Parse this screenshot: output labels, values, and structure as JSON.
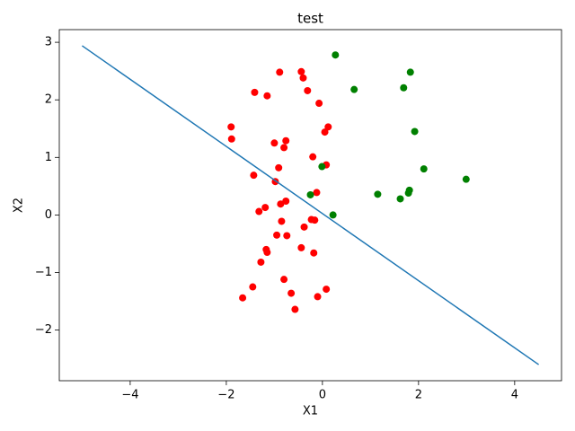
{
  "chart_data": {
    "type": "scatter",
    "title": "test",
    "x_label": "X1",
    "y_label": "X2",
    "xlim": [
      -5.475,
      4.975
    ],
    "ylim": [
      -2.88,
      3.22
    ],
    "xticks": [
      {
        "value": -4,
        "label": "−4"
      },
      {
        "value": -2,
        "label": "−2"
      },
      0,
      2,
      4
    ],
    "yticks": [
      {
        "value": -2,
        "label": "−2"
      },
      {
        "value": -1,
        "label": "−1"
      },
      0,
      1,
      2,
      3
    ],
    "series": [
      {
        "type": "scatter",
        "color": "#ff0000",
        "x": [
          -0.44,
          -0.89,
          -0.4,
          -1.41,
          -0.31,
          -1.15,
          -0.07,
          -1.9,
          0.12,
          0.05,
          -1.89,
          -0.76,
          -1.0,
          -0.8,
          -0.2,
          0.08,
          -0.91,
          -1.43,
          -0.98,
          -0.12,
          -0.76,
          -0.87,
          -1.19,
          -1.32,
          -0.23,
          -0.16,
          -0.85,
          -0.38,
          -0.95,
          -0.74,
          -1.17,
          -1.15,
          -0.44,
          -0.18,
          -1.28,
          -0.8,
          -1.45,
          0.08,
          -0.65,
          -0.1,
          -1.66,
          -0.57
        ],
        "values": [
          2.49,
          2.48,
          2.38,
          2.13,
          2.16,
          2.07,
          1.94,
          1.53,
          1.53,
          1.44,
          1.32,
          1.29,
          1.25,
          1.17,
          1.01,
          0.87,
          0.82,
          0.69,
          0.58,
          0.39,
          0.24,
          0.19,
          0.13,
          0.06,
          -0.08,
          -0.09,
          -0.11,
          -0.21,
          -0.35,
          -0.36,
          -0.6,
          -0.65,
          -0.57,
          -0.66,
          -0.82,
          -1.12,
          -1.25,
          -1.29,
          -1.36,
          -1.42,
          -1.44,
          -1.64
        ]
      },
      {
        "type": "scatter",
        "color": "#008000",
        "x": [
          0.27,
          1.83,
          0.66,
          1.69,
          1.92,
          2.11,
          -0.01,
          2.99,
          1.81,
          1.79,
          1.15,
          1.62,
          -0.25,
          0.22
        ],
        "values": [
          2.78,
          2.48,
          2.18,
          2.21,
          1.45,
          0.8,
          0.84,
          0.62,
          0.43,
          0.38,
          0.36,
          0.28,
          0.35,
          0.0
        ]
      },
      {
        "type": "line",
        "color": "#1f77b4",
        "x": [
          -5,
          4.5
        ],
        "values": [
          2.94,
          -2.6
        ]
      }
    ]
  }
}
